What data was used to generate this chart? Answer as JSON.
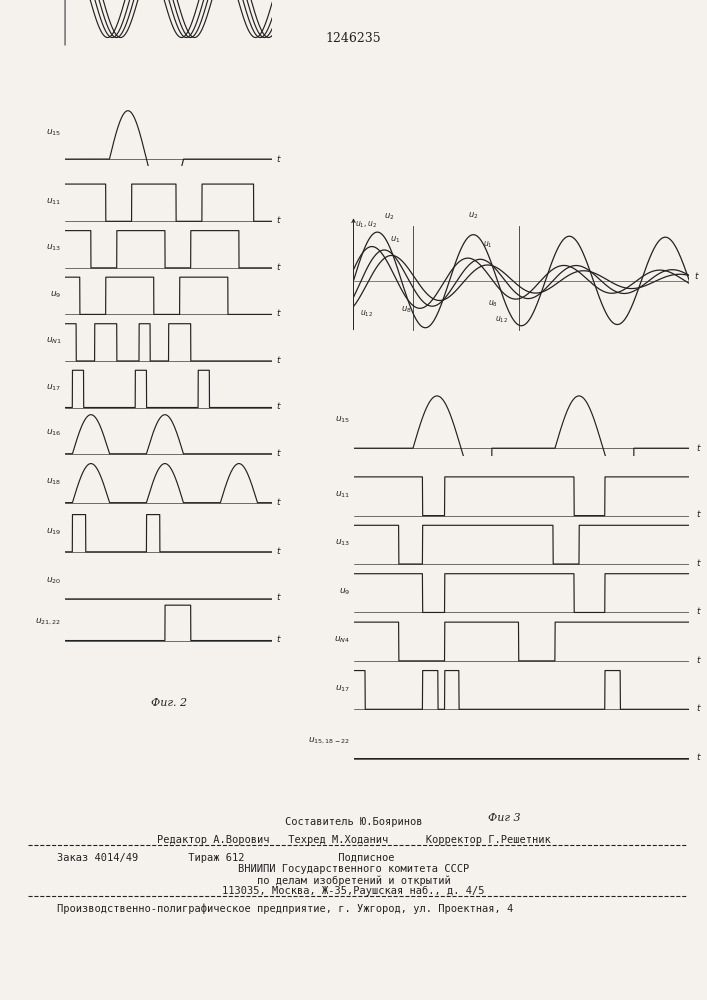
{
  "title": "1246235",
  "fig2_label": "Фиг. 2",
  "fig3_label": "Фиг 3",
  "footer_sestavitel": "Составитель Ю.Бояринов",
  "footer_redaktor": "Редактор А.Ворович   Техред М.Ходанич      Корректор Г.Решетник",
  "footer_zakaz": "Заказ 4014/49        Тираж 612               Подписное",
  "footer_vniip": "ВНИИПИ Государственного комитета СССР",
  "footer_po": "по делам изобретений и открытий",
  "footer_addr": "113035, Москва, Ж-35,Раушская наб., д. 4/5",
  "footer_uggorod": "Производственно-полиграфическое предприятие, г. Ужгород, ул. Проектная, 4",
  "bg_color": "#f5f2ee",
  "line_color": "#222222"
}
